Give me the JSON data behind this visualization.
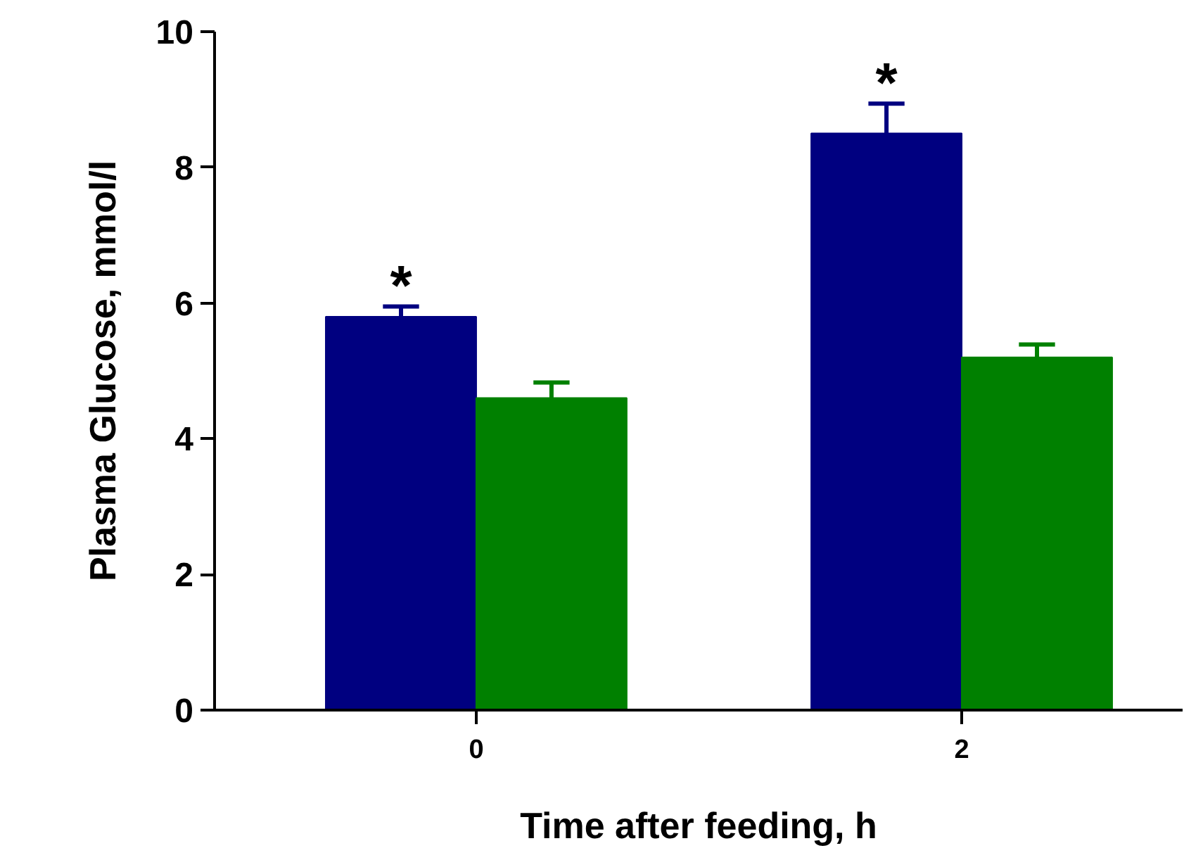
{
  "chart_data": {
    "type": "bar",
    "xlabel": "Time after feeding, h",
    "ylabel": "Plasma Glucose, mmol/l",
    "categories": [
      "0",
      "2"
    ],
    "series": [
      {
        "color": "#000080",
        "values": [
          5.8,
          8.5
        ],
        "errors": [
          [
            5.8,
            5.95
          ],
          [
            8.5,
            8.94
          ]
        ]
      },
      {
        "color": "#008000",
        "values": [
          4.6,
          5.2
        ],
        "errors": [
          [
            4.6,
            4.83
          ],
          [
            5.2,
            5.39
          ]
        ]
      }
    ],
    "ylim": [
      0,
      10
    ],
    "yticks": [
      0,
      2,
      4,
      6,
      8,
      10
    ],
    "grid": false,
    "annotations": [
      "*",
      "*"
    ]
  }
}
